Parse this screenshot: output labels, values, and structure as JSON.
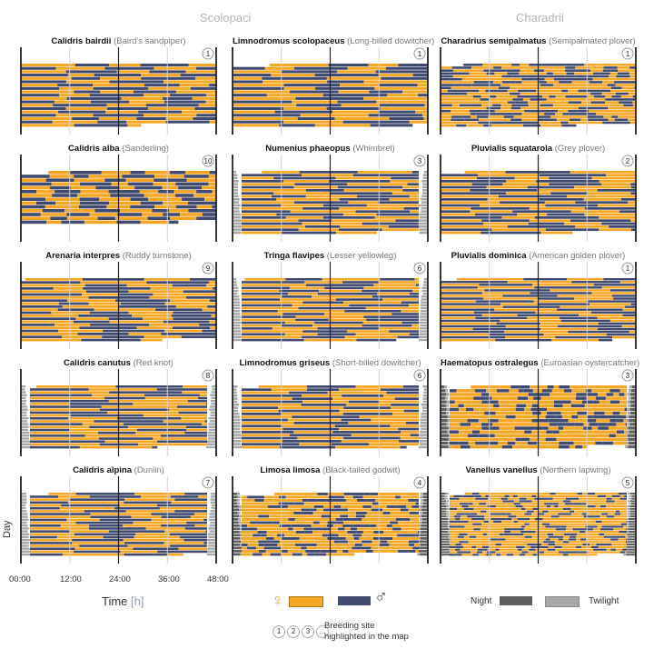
{
  "groups": [
    "Scolopaci",
    "Charadrii"
  ],
  "colors": {
    "female": "#f5a623",
    "male": "#3f4a6e",
    "night": "#5f5f5f",
    "twilight": "#a8a8a8",
    "axis": "#222222",
    "grid": "#d0d0d0"
  },
  "chart_data": {
    "type": "actogram",
    "xlabel": "Time",
    "xunit": "[h]",
    "ylabel": "Day",
    "xlim": [
      0,
      48
    ],
    "xticks": [
      "00:00",
      "12:00",
      "24:00",
      "36:00",
      "48:00"
    ],
    "series": [
      {
        "name": "female",
        "symbol": "♀"
      },
      {
        "name": "male",
        "symbol": "♂"
      }
    ],
    "panels": [
      {
        "species": "Calidris bairdii",
        "common": "(Baird's sandpiper)",
        "site": "1",
        "days": 19,
        "bout_hours": 10,
        "light": "none",
        "drift": 2.0
      },
      {
        "species": "Limnodromus scolopaceus",
        "common": "(Long-billed dowitcher)",
        "site": "1",
        "days": 19,
        "bout_hours": 12,
        "light": "none",
        "drift": 1.0
      },
      {
        "species": "Charadrius semipalmatus",
        "common": "(Semipalmated plover)",
        "site": "1",
        "days": 22,
        "bout_hours": 2.5,
        "light": "none",
        "drift": 0
      },
      {
        "species": "Calidris alba",
        "common": "(Sanderling)",
        "site": "10",
        "days": 14,
        "bout_hours": 6,
        "light": "none",
        "drift": 1.5
      },
      {
        "species": "Numenius phaeopus",
        "common": "(Whimbrel)",
        "site": "3",
        "days": 21,
        "bout_hours": 12,
        "light": "twilight",
        "drift": 0.7
      },
      {
        "species": "Pluvialis squatarola",
        "common": "(Grey plover)",
        "site": "2",
        "days": 21,
        "bout_hours": 12,
        "light": "none",
        "drift": 0.5
      },
      {
        "species": "Arenaria interpres",
        "common": "(Ruddy turnstone)",
        "site": "9",
        "days": 21,
        "bout_hours": 12,
        "light": "none",
        "drift": 1.2
      },
      {
        "species": "Tringa flavipes",
        "common": "(Lesser yellowleg)",
        "site": "6",
        "days": 22,
        "bout_hours": 12,
        "light": "twilight",
        "drift": 0.2
      },
      {
        "species": "Pluvialis dominica",
        "common": "(American golden plover)",
        "site": "1",
        "days": 23,
        "bout_hours": 12,
        "light": "none",
        "drift": 0.2
      },
      {
        "species": "Calidris canutus",
        "common": "(Red knot)",
        "site": "8",
        "days": 22,
        "bout_hours": 14,
        "light": "twilight",
        "drift": 0.8
      },
      {
        "species": "Limnodromus griseus",
        "common": "(Short-billed dowitcher)",
        "site": "6",
        "days": 21,
        "bout_hours": 12,
        "light": "twilight",
        "drift": 0.3
      },
      {
        "species": "Haematopus ostralegus",
        "common": "(Euroasian oystercatcher)",
        "site": "3",
        "days": 17,
        "bout_hours": 2,
        "light": "night",
        "drift": 0
      },
      {
        "species": "Calidris alpina",
        "common": "(Dunlin)",
        "site": "7",
        "days": 22,
        "bout_hours": 11,
        "light": "twilight",
        "drift": 1.0
      },
      {
        "species": "Limosa limosa",
        "common": "(Black-tailed godwit)",
        "site": "4",
        "days": 20,
        "bout_hours": 2,
        "light": "night",
        "drift": 0
      },
      {
        "species": "Vanellus vanellus",
        "common": "(Northern lapwing)",
        "site": "5",
        "days": 25,
        "bout_hours": 1.5,
        "light": "night",
        "drift": 0
      }
    ]
  },
  "legend": {
    "time_label": "Time",
    "time_unit": "[h]",
    "day_label": "Day",
    "female_symbol": "♀",
    "male_symbol": "♂",
    "night_label": "Night",
    "twilight_label": "Twilight",
    "site_badges": [
      "1",
      "2",
      "3",
      "..."
    ],
    "site_text_1": "Breeding site",
    "site_text_2": "highlighted in the map"
  }
}
